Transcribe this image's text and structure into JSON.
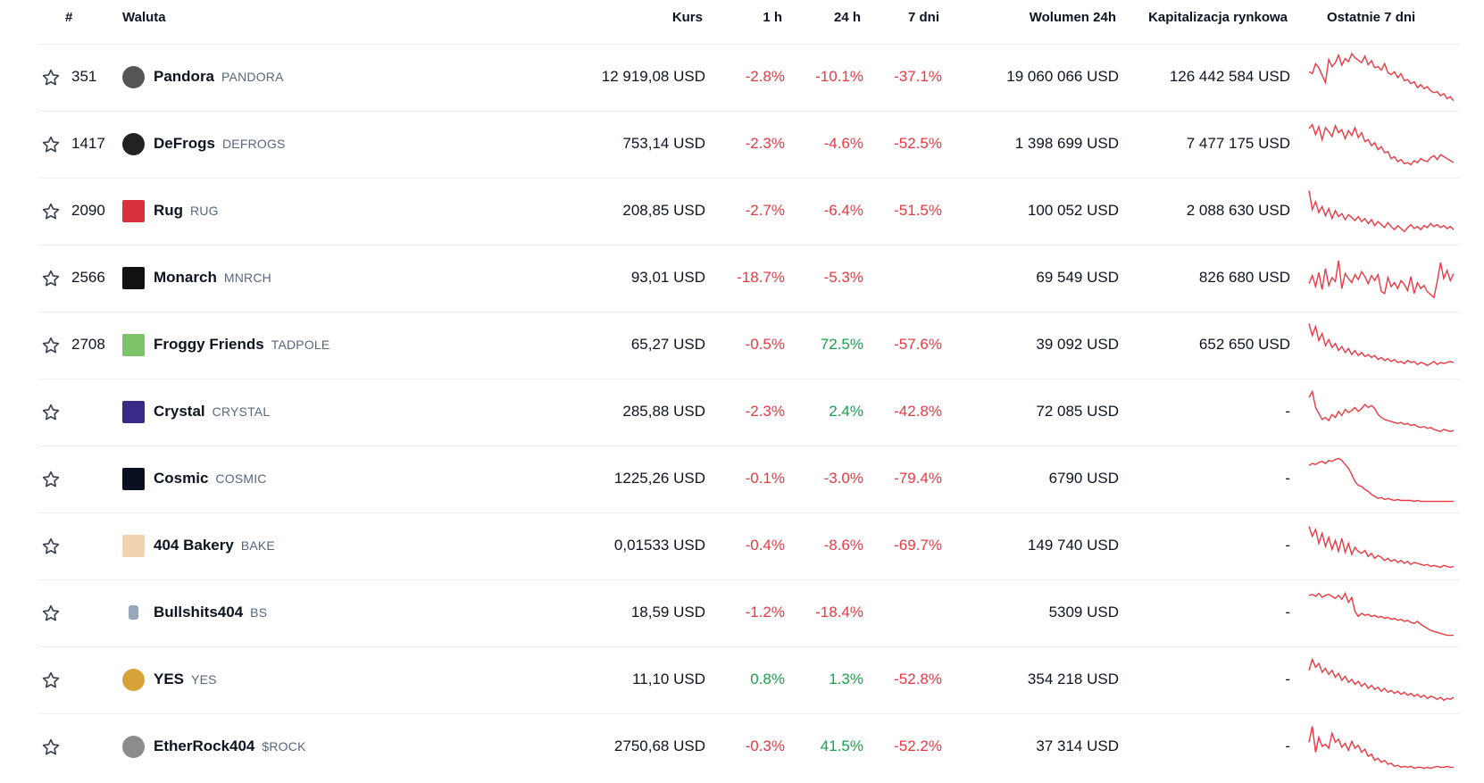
{
  "header": {
    "num": "#",
    "name": "Waluta",
    "price": "Kurs",
    "h1": "1 h",
    "h24": "24 h",
    "d7": "7 dni",
    "volume": "Wolumen 24h",
    "market_cap": "Kapitalizacja rynkowa",
    "last7": "Ostatnie 7 dni"
  },
  "colors": {
    "negative": "#ea3943",
    "positive": "#1aa14b",
    "divider": "#eceff3"
  },
  "rows": [
    {
      "rank": "351",
      "name": "Pandora",
      "symbol": "PANDORA",
      "price": "12 919,08 USD",
      "h1": "-2.8%",
      "h24": "-10.1%",
      "d7": "-37.1%",
      "volume": "19 060 066 USD",
      "cap": "126 442 584 USD",
      "logo_icon": "pandora-logo-icon",
      "logo_color": "#555555",
      "spark": [
        62,
        58,
        78,
        70,
        55,
        40,
        86,
        72,
        80,
        95,
        75,
        88,
        82,
        98,
        90,
        85,
        80,
        93,
        76,
        84,
        70,
        72,
        65,
        78,
        60,
        56,
        62,
        50,
        58,
        44,
        46,
        38,
        42,
        30,
        36,
        28,
        32,
        24,
        20,
        22,
        14,
        18,
        8,
        12,
        4
      ]
    },
    {
      "rank": "1417",
      "name": "DeFrogs",
      "symbol": "DEFROGS",
      "price": "753,14 USD",
      "h1": "-2.3%",
      "h24": "-4.6%",
      "d7": "-52.5%",
      "volume": "1 398 699 USD",
      "cap": "7 477 175 USD",
      "logo_icon": "defrogs-logo-icon",
      "logo_color": "#222222",
      "spark": [
        82,
        90,
        70,
        86,
        60,
        84,
        76,
        66,
        88,
        74,
        80,
        62,
        78,
        68,
        84,
        64,
        74,
        56,
        60,
        48,
        54,
        40,
        46,
        34,
        36,
        22,
        26,
        16,
        20,
        12,
        14,
        10,
        18,
        14,
        22,
        18,
        16,
        24,
        28,
        20,
        30,
        26,
        22,
        18,
        14
      ]
    },
    {
      "rank": "2090",
      "name": "Rug",
      "symbol": "RUG",
      "price": "208,85 USD",
      "h1": "-2.7%",
      "h24": "-6.4%",
      "d7": "-51.5%",
      "volume": "100 052 USD",
      "cap": "2 088 630 USD",
      "logo_icon": "rug-logo-icon",
      "logo_color": "#d8303c",
      "spark": [
        92,
        54,
        70,
        48,
        60,
        42,
        56,
        36,
        52,
        40,
        46,
        34,
        44,
        38,
        32,
        40,
        30,
        36,
        26,
        34,
        22,
        30,
        24,
        18,
        28,
        20,
        14,
        22,
        16,
        10,
        18,
        24,
        16,
        20,
        14,
        22,
        18,
        26,
        20,
        24,
        18,
        22,
        16,
        20,
        14
      ]
    },
    {
      "rank": "2566",
      "name": "Monarch",
      "symbol": "MNRCH",
      "price": "93,01 USD",
      "h1": "-18.7%",
      "h24": "-5.3%",
      "d7": "",
      "volume": "69 549 USD",
      "cap": "826 680 USD",
      "logo_icon": "monarch-logo-icon",
      "logo_color": "#111111",
      "spark": [
        40,
        56,
        34,
        62,
        28,
        70,
        36,
        52,
        44,
        86,
        30,
        60,
        50,
        42,
        58,
        48,
        64,
        54,
        40,
        56,
        46,
        58,
        24,
        20,
        52,
        34,
        42,
        30,
        46,
        38,
        26,
        54,
        20,
        42,
        30,
        36,
        24,
        18,
        12,
        44,
        82,
        50,
        66,
        46,
        60
      ]
    },
    {
      "rank": "2708",
      "name": "Froggy Friends",
      "symbol": "TADPOLE",
      "price": "65,27 USD",
      "h1": "-0.5%",
      "h24": "72.5%",
      "d7": "-57.6%",
      "volume": "39 092 USD",
      "cap": "652 650 USD",
      "logo_icon": "froggy-friends-logo-icon",
      "logo_color": "#7cc36a",
      "spark": [
        94,
        70,
        88,
        60,
        74,
        50,
        62,
        46,
        54,
        40,
        48,
        36,
        44,
        32,
        40,
        30,
        36,
        28,
        32,
        26,
        30,
        22,
        26,
        20,
        24,
        18,
        22,
        16,
        18,
        14,
        20,
        16,
        18,
        12,
        16,
        14,
        10,
        14,
        18,
        12,
        16,
        14,
        16,
        18,
        16
      ]
    },
    {
      "rank": "",
      "name": "Crystal",
      "symbol": "CRYSTAL",
      "price": "285,88 USD",
      "h1": "-2.3%",
      "h24": "2.4%",
      "d7": "-42.8%",
      "volume": "72 085 USD",
      "cap": "-",
      "logo_icon": "crystal-logo-icon",
      "logo_color": "#3a2a88",
      "spark": [
        80,
        92,
        60,
        48,
        36,
        40,
        34,
        46,
        40,
        52,
        44,
        56,
        50,
        54,
        60,
        52,
        58,
        66,
        60,
        64,
        58,
        46,
        40,
        36,
        34,
        32,
        30,
        28,
        30,
        26,
        28,
        24,
        26,
        22,
        20,
        22,
        18,
        20,
        16,
        14,
        12,
        16,
        14,
        12,
        14
      ]
    },
    {
      "rank": "",
      "name": "Cosmic",
      "symbol": "COSMIC",
      "price": "1225,26 USD",
      "h1": "-0.1%",
      "h24": "-3.0%",
      "d7": "-79.4%",
      "volume": "6790 USD",
      "cap": "-",
      "logo_icon": "cosmic-logo-icon",
      "logo_color": "#0b1020",
      "spark": [
        78,
        82,
        80,
        84,
        86,
        82,
        88,
        86,
        90,
        92,
        88,
        80,
        72,
        60,
        46,
        38,
        36,
        30,
        26,
        20,
        16,
        12,
        14,
        10,
        12,
        10,
        8,
        10,
        8,
        8,
        8,
        8,
        6,
        8,
        6,
        6,
        6,
        6,
        6,
        6,
        6,
        6,
        6,
        6,
        6
      ]
    },
    {
      "rank": "",
      "name": "404 Bakery",
      "symbol": "BAKE",
      "price": "0,01533 USD",
      "h1": "-0.4%",
      "h24": "-8.6%",
      "d7": "-69.7%",
      "volume": "149 740 USD",
      "cap": "-",
      "logo_icon": "404-bakery-logo-icon",
      "logo_color": "#f2d2b0",
      "spark": [
        90,
        70,
        84,
        56,
        76,
        50,
        68,
        44,
        62,
        40,
        66,
        38,
        56,
        34,
        48,
        40,
        36,
        42,
        30,
        36,
        26,
        32,
        28,
        22,
        26,
        20,
        24,
        18,
        22,
        16,
        20,
        14,
        18,
        16,
        14,
        12,
        14,
        10,
        12,
        10,
        8,
        12,
        10,
        8,
        10
      ]
    },
    {
      "rank": "",
      "name": "Bullshits404",
      "symbol": "BS",
      "price": "18,59 USD",
      "h1": "-1.2%",
      "h24": "-18.4%",
      "d7": "",
      "volume": "5309 USD",
      "cap": "-",
      "logo_icon": "bullshits404-logo-icon",
      "logo_color": "#9aa7b8",
      "spark": [
        86,
        88,
        84,
        90,
        82,
        86,
        88,
        84,
        80,
        86,
        78,
        90,
        72,
        82,
        54,
        44,
        50,
        46,
        48,
        44,
        46,
        42,
        44,
        40,
        42,
        38,
        40,
        36,
        38,
        34,
        36,
        32,
        30,
        34,
        28,
        24,
        20,
        16,
        14,
        12,
        10,
        8,
        6,
        6,
        6
      ]
    },
    {
      "rank": "",
      "name": "YES",
      "symbol": "YES",
      "price": "11,10 USD",
      "h1": "0.8%",
      "h24": "1.3%",
      "d7": "-52.8%",
      "volume": "354 218 USD",
      "cap": "-",
      "logo_icon": "yes-logo-icon",
      "logo_color": "#d8a23a",
      "spark": [
        70,
        92,
        76,
        84,
        66,
        74,
        62,
        70,
        56,
        64,
        50,
        58,
        46,
        52,
        42,
        48,
        38,
        44,
        34,
        40,
        32,
        36,
        28,
        34,
        26,
        30,
        24,
        28,
        22,
        26,
        20,
        24,
        18,
        22,
        16,
        20,
        14,
        18,
        16,
        12,
        16,
        10,
        14,
        12,
        16
      ]
    },
    {
      "rank": "",
      "name": "EtherRock404",
      "symbol": "$ROCK",
      "price": "2750,68 USD",
      "h1": "-0.3%",
      "h24": "41.5%",
      "d7": "-52.2%",
      "volume": "37 314 USD",
      "cap": "-",
      "logo_icon": "etherrock404-logo-icon",
      "logo_color": "#8c8c8c",
      "spark": [
        60,
        92,
        40,
        70,
        52,
        56,
        48,
        78,
        60,
        66,
        50,
        58,
        44,
        62,
        48,
        54,
        40,
        46,
        32,
        36,
        24,
        28,
        20,
        24,
        16,
        18,
        12,
        14,
        10,
        12,
        10,
        12,
        8,
        10,
        10,
        8,
        10,
        8,
        10,
        12,
        10,
        10,
        12,
        10,
        10
      ]
    }
  ]
}
